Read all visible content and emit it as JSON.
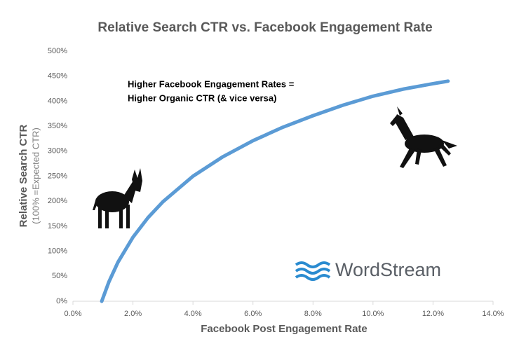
{
  "chart_data": {
    "type": "line",
    "title": "Relative Search CTR vs. Facebook Engagement Rate",
    "x_label": "Facebook Post Engagement Rate",
    "y_label": "Relative Search CTR",
    "y_sublabel": "(100% =Expected CTR)",
    "annotations": [
      "Higher Facebook Engagement Rates =",
      "Higher Organic CTR (& vice versa)"
    ],
    "series": [
      {
        "color": "#5b9bd5",
        "x": [
          0.96,
          1.2,
          1.5,
          2,
          2.5,
          3,
          4,
          5,
          6,
          7,
          8,
          9,
          10,
          11,
          12,
          12.5
        ],
        "values": [
          0,
          39,
          78,
          128,
          167,
          199,
          250,
          289,
          321,
          348,
          371,
          392,
          410,
          424,
          435,
          440
        ]
      }
    ],
    "xlim": [
      0,
      14
    ],
    "xticks": [
      {
        "value": 0,
        "label": "0.0%"
      },
      {
        "value": 2,
        "label": "2.0%"
      },
      {
        "value": 4,
        "label": "4.0%"
      },
      {
        "value": 6,
        "label": "6.0%"
      },
      {
        "value": 8,
        "label": "8.0%"
      },
      {
        "value": 10,
        "label": "10.0%"
      },
      {
        "value": 12,
        "label": "12.0%"
      },
      {
        "value": 14,
        "label": "14.0%"
      }
    ],
    "ylim": [
      0,
      500
    ],
    "yticks": [
      {
        "value": 0,
        "label": "0%"
      },
      {
        "value": 50,
        "label": "50%"
      },
      {
        "value": 100,
        "label": "100%"
      },
      {
        "value": 150,
        "label": "150%"
      },
      {
        "value": 200,
        "label": "200%"
      },
      {
        "value": 250,
        "label": "250%"
      },
      {
        "value": 300,
        "label": "300%"
      },
      {
        "value": 350,
        "label": "350%"
      },
      {
        "value": 400,
        "label": "400%"
      },
      {
        "value": 450,
        "label": "450%"
      },
      {
        "value": 500,
        "label": "500%"
      }
    ],
    "grid": false
  },
  "logo": "WordStream"
}
